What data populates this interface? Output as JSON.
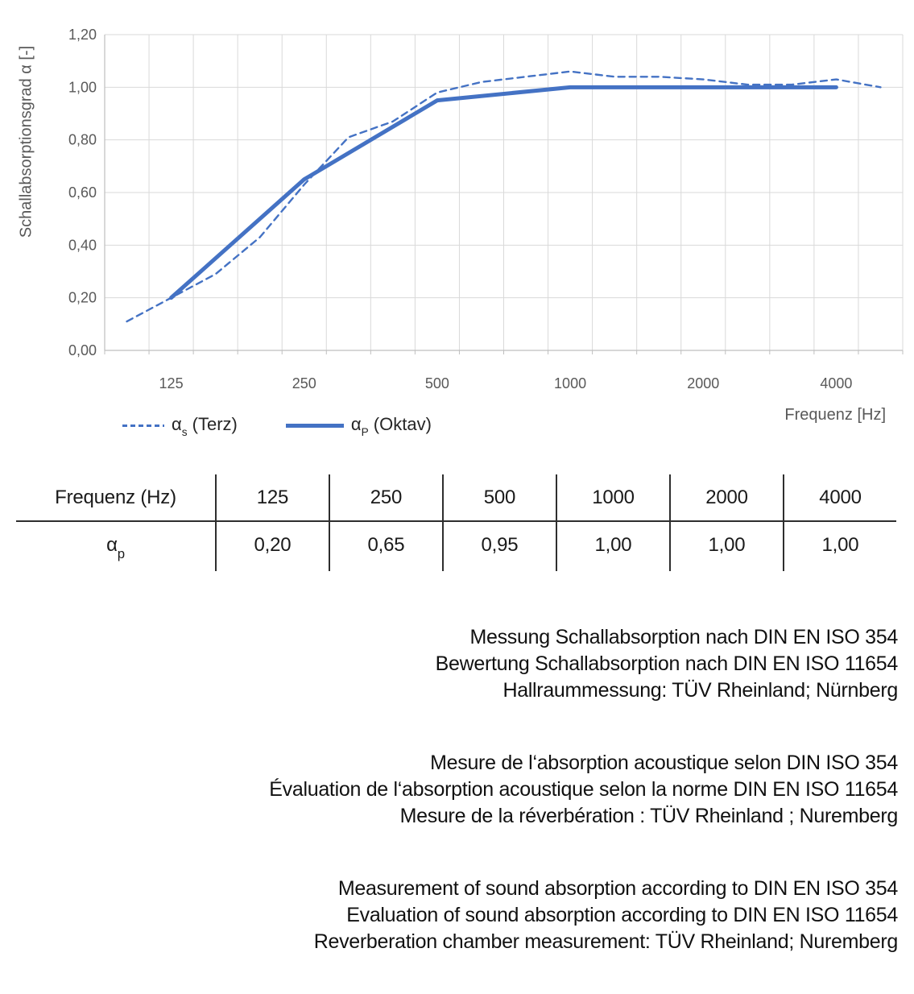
{
  "chart_data": {
    "type": "line",
    "title": "",
    "xlabel": "Frequenz [Hz]",
    "ylabel": "Schallabsorptionsgrad α [-]",
    "ylim": [
      0,
      1.2
    ],
    "grid": true,
    "legend_position": "bottom-left",
    "line_color": "#4472C4",
    "gridline_color": "#D9D9D9",
    "axis_color": "#BFBFBF",
    "tick_text_color": "#595959",
    "categories": [
      100,
      125,
      160,
      200,
      250,
      315,
      400,
      500,
      630,
      800,
      1000,
      1250,
      1600,
      2000,
      2500,
      3150,
      4000,
      5000
    ],
    "y_tick_labels": [
      "0,00",
      "0,20",
      "0,40",
      "0,60",
      "0,80",
      "1,00",
      "1,20"
    ],
    "x_ticks": [
      125,
      250,
      500,
      1000,
      2000,
      4000
    ],
    "x_tick_labels": [
      "125",
      "250",
      "500",
      "1000",
      "2000",
      "4000"
    ],
    "series": [
      {
        "name": "αs (Terz)",
        "style": "dashed",
        "x": [
          100,
          125,
          160,
          200,
          250,
          315,
          400,
          500,
          630,
          800,
          1000,
          1250,
          1600,
          2000,
          2500,
          3150,
          4000,
          5000
        ],
        "values": [
          0.11,
          0.2,
          0.29,
          0.43,
          0.63,
          0.81,
          0.87,
          0.98,
          1.02,
          1.04,
          1.06,
          1.04,
          1.04,
          1.03,
          1.01,
          1.01,
          1.03,
          1.0
        ]
      },
      {
        "name": "αP (Oktav)",
        "style": "solid",
        "x": [
          125,
          250,
          500,
          1000,
          2000,
          4000
        ],
        "values": [
          0.2,
          0.65,
          0.95,
          1.0,
          1.0,
          1.0
        ]
      }
    ]
  },
  "legend": [
    {
      "sym": "α",
      "sub": "s",
      "rest": " (Terz)"
    },
    {
      "sym": "α",
      "sub": "P",
      "rest": " (Oktav)"
    }
  ],
  "axis": {
    "ylabel": "Schallabsorptionsgrad α [-]",
    "xlabel": "Frequenz [Hz]"
  },
  "table": {
    "header": [
      "Frequenz (Hz)",
      "125",
      "250",
      "500",
      "1000",
      "2000",
      "4000"
    ],
    "row_label_sym": "α",
    "row_label_sub": "p",
    "values": [
      "0,20",
      "0,65",
      "0,95",
      "1,00",
      "1,00",
      "1,00"
    ]
  },
  "notes": {
    "de": [
      "Messung Schallabsorption nach DIN EN ISO 354",
      "Bewertung Schallabsorption nach DIN EN ISO 11654",
      "Hallraummessung: TÜV Rheinland; Nürnberg"
    ],
    "fr": [
      "Mesure de l‘absorption acoustique selon DIN ISO 354",
      "Évaluation de l‘absorption acoustique selon la norme DIN EN ISO 11654",
      "Mesure de la réverbération : TÜV Rheinland ; Nuremberg"
    ],
    "en": [
      "Measurement of sound absorption according to DIN EN ISO 354",
      "Evaluation of sound absorption according to DIN EN ISO 11654",
      "Reverberation chamber measurement: TÜV Rheinland; Nuremberg"
    ]
  }
}
